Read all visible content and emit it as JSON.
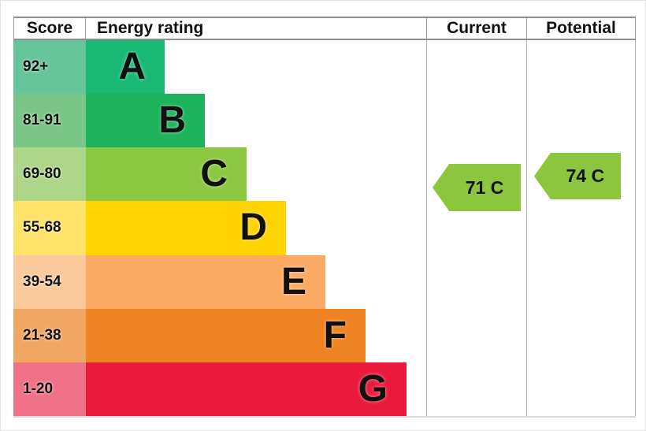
{
  "header": {
    "score": "Score",
    "energy_rating": "Energy rating",
    "current": "Current",
    "potential": "Potential"
  },
  "bands": [
    {
      "score": "92+",
      "letter": "A",
      "bar_color": "#19b875",
      "score_color": "#67c59c"
    },
    {
      "score": "81-91",
      "letter": "B",
      "bar_color": "#1fb25c",
      "score_color": "#7ac687"
    },
    {
      "score": "69-80",
      "letter": "C",
      "bar_color": "#8cc841",
      "score_color": "#aed688"
    },
    {
      "score": "55-68",
      "letter": "D",
      "bar_color": "#ffd400",
      "score_color": "#ffe26a"
    },
    {
      "score": "39-54",
      "letter": "E",
      "bar_color": "#fbaa64",
      "score_color": "#fbca9c"
    },
    {
      "score": "21-38",
      "letter": "F",
      "bar_color": "#ee8424",
      "score_color": "#f1a763"
    },
    {
      "score": "1-20",
      "letter": "G",
      "bar_color": "#ea1a3c",
      "score_color": "#ef7289"
    }
  ],
  "current_arrow": {
    "label": "71 C",
    "color": "#8cc63f"
  },
  "potential_arrow": {
    "label": "74 C",
    "color": "#8cc63f"
  },
  "chart_data": {
    "type": "bar",
    "title": "Energy rating",
    "columns": [
      "Score",
      "Energy rating",
      "Current",
      "Potential"
    ],
    "categories": [
      "A",
      "B",
      "C",
      "D",
      "E",
      "F",
      "G"
    ],
    "score_ranges": [
      "92+",
      "81-91",
      "69-80",
      "55-68",
      "39-54",
      "21-38",
      "1-20"
    ],
    "bar_relative_lengths": [
      0.23,
      0.35,
      0.47,
      0.59,
      0.7,
      0.82,
      0.94
    ],
    "band_colors": [
      "#19b875",
      "#1fb25c",
      "#8cc841",
      "#ffd400",
      "#fbaa64",
      "#ee8424",
      "#ea1a3c"
    ],
    "current": {
      "value": 71,
      "band": "C",
      "arrow_color": "#8cc63f"
    },
    "potential": {
      "value": 74,
      "band": "C",
      "arrow_color": "#8cc63f"
    },
    "legend_position": "none",
    "grid": false
  }
}
